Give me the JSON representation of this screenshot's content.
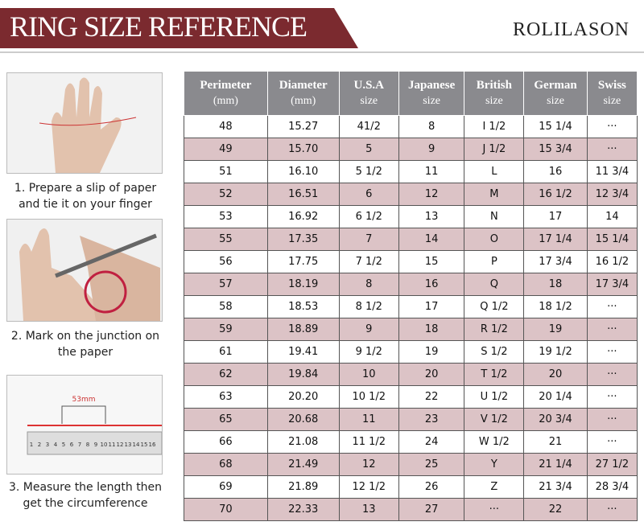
{
  "header": {
    "title": "RING SIZE REFERENCE",
    "brand": "ROLILASON"
  },
  "steps": [
    {
      "lines": [
        "1. Prepare a slip of paper",
        "and tie it on your finger"
      ]
    },
    {
      "lines": [
        "2. Mark on the junction on",
        "the paper"
      ]
    },
    {
      "lines": [
        "3. Measure the length then",
        "get the circumference"
      ]
    }
  ],
  "ruler": {
    "measure": "53mm",
    "numbers": [
      "1",
      "2",
      "3",
      "4",
      "5",
      "6",
      "7",
      "8",
      "9",
      "10",
      "11",
      "12",
      "13",
      "14",
      "15",
      "16"
    ]
  },
  "table": {
    "columns": [
      [
        "Perimeter",
        "(mm)"
      ],
      [
        "Diameter",
        "(mm)"
      ],
      [
        "U.S.A",
        "size"
      ],
      [
        "Japanese",
        "size"
      ],
      [
        "British",
        "size"
      ],
      [
        "German",
        "size"
      ],
      [
        "Swiss",
        "size"
      ]
    ],
    "rows": [
      [
        "48",
        "15.27",
        "41/2",
        "8",
        "I 1/2",
        "15 1/4",
        "···"
      ],
      [
        "49",
        "15.70",
        "5",
        "9",
        "J 1/2",
        "15 3/4",
        "···"
      ],
      [
        "51",
        "16.10",
        "5 1/2",
        "11",
        "L",
        "16",
        "11 3/4"
      ],
      [
        "52",
        "16.51",
        "6",
        "12",
        "M",
        "16 1/2",
        "12 3/4"
      ],
      [
        "53",
        "16.92",
        "6 1/2",
        "13",
        "N",
        "17",
        "14"
      ],
      [
        "55",
        "17.35",
        "7",
        "14",
        "O",
        "17 1/4",
        "15 1/4"
      ],
      [
        "56",
        "17.75",
        "7 1/2",
        "15",
        "P",
        "17 3/4",
        "16 1/2"
      ],
      [
        "57",
        "18.19",
        "8",
        "16",
        "Q",
        "18",
        "17 3/4"
      ],
      [
        "58",
        "18.53",
        "8 1/2",
        "17",
        "Q  1/2",
        "18 1/2",
        "···"
      ],
      [
        "59",
        "18.89",
        "9",
        "18",
        "R 1/2",
        "19",
        "···"
      ],
      [
        "61",
        "19.41",
        "9 1/2",
        "19",
        "S 1/2",
        "19 1/2",
        "···"
      ],
      [
        "62",
        "19.84",
        "10",
        "20",
        "T 1/2",
        "20",
        "···"
      ],
      [
        "63",
        "20.20",
        "10 1/2",
        "22",
        "U 1/2",
        "20 1/4",
        "···"
      ],
      [
        "65",
        "20.68",
        "11",
        "23",
        "V 1/2",
        "20 3/4",
        "···"
      ],
      [
        "66",
        "21.08",
        "11 1/2",
        "24",
        "W 1/2",
        "21",
        "···"
      ],
      [
        "68",
        "21.49",
        "12",
        "25",
        "Y",
        "21 1/4",
        "27 1/2"
      ],
      [
        "69",
        "21.89",
        "12 1/2",
        "26",
        "Z",
        "21 3/4",
        "28 3/4"
      ],
      [
        "70",
        "22.33",
        "13",
        "27",
        "···",
        "22",
        "···"
      ]
    ]
  }
}
